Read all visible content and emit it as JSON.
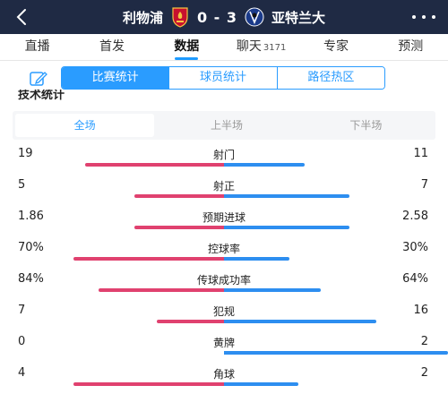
{
  "header": {
    "home_team": "利物浦",
    "score": "0 - 3",
    "away_team": "亚特兰大"
  },
  "tabs": [
    {
      "label": "直播",
      "active": false,
      "count": ""
    },
    {
      "label": "首发",
      "active": false,
      "count": ""
    },
    {
      "label": "数据",
      "active": true,
      "count": ""
    },
    {
      "label": "聊天",
      "active": false,
      "count": "3171"
    },
    {
      "label": "专家",
      "active": false,
      "count": ""
    },
    {
      "label": "预测",
      "active": false,
      "count": ""
    }
  ],
  "segments": [
    {
      "label": "比赛统计",
      "active": true
    },
    {
      "label": "球员统计",
      "active": false
    },
    {
      "label": "路径热区",
      "active": false
    }
  ],
  "section_title": "技术统计",
  "periods": [
    {
      "label": "全场",
      "active": true
    },
    {
      "label": "上半场",
      "active": false
    },
    {
      "label": "下半场",
      "active": false
    }
  ],
  "colors": {
    "header_bg": "#1f2a44",
    "home_bar": "#e0416f",
    "away_bar": "#2d8ef0",
    "accent": "#2a9cff"
  },
  "stats": [
    {
      "label": "射门",
      "home": "19",
      "away": "11",
      "home_frac": 0.62,
      "away_frac": 0.36
    },
    {
      "label": "射正",
      "home": "5",
      "away": "7",
      "home_frac": 0.4,
      "away_frac": 0.56
    },
    {
      "label": "预期进球",
      "home": "1.86",
      "away": "2.58",
      "home_frac": 0.4,
      "away_frac": 0.56
    },
    {
      "label": "控球率",
      "home": "70%",
      "away": "30%",
      "home_frac": 0.67,
      "away_frac": 0.29
    },
    {
      "label": "传球成功率",
      "home": "84%",
      "away": "64%",
      "home_frac": 0.56,
      "away_frac": 0.43
    },
    {
      "label": "犯规",
      "home": "7",
      "away": "16",
      "home_frac": 0.3,
      "away_frac": 0.68
    },
    {
      "label": "黄牌",
      "home": "0",
      "away": "2",
      "home_frac": 0.0,
      "away_frac": 1.0
    },
    {
      "label": "角球",
      "home": "4",
      "away": "2",
      "home_frac": 0.67,
      "away_frac": 0.33
    }
  ]
}
